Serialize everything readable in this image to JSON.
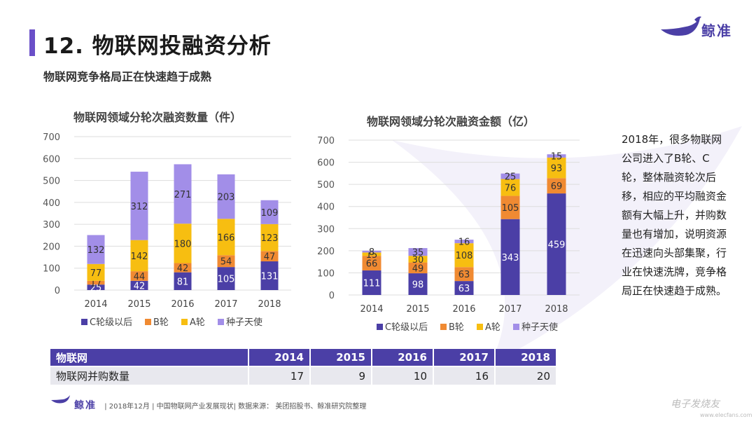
{
  "header": {
    "title": "12. 物联网投融资分析",
    "subtitle": "物联网竞争格局正在快速趋于成熟",
    "logo_text": "鲸准"
  },
  "side_text": "2018年，很多物联网公司进入了B轮、C轮，整体融资轮次后移，相应的平均融资金额有大幅上升，并购数量也有增加，说明资源在迅速向头部集聚，行业在快速洗牌，竞争格局正在快速趋于成熟。",
  "colors": {
    "c_round": "#4b3fa6",
    "b_round": "#f08a32",
    "a_round": "#f7be11",
    "seed": "#a28ee8",
    "accent": "#6a4fc8"
  },
  "chart_data": [
    {
      "type": "bar",
      "stacked": true,
      "title": "物联网领域分轮次融资数量（件）",
      "categories": [
        "2014",
        "2015",
        "2016",
        "2017",
        "2018"
      ],
      "ylim": [
        0,
        700
      ],
      "yticks": [
        "0",
        "100",
        "200",
        "300",
        "400",
        "500",
        "600",
        "700"
      ],
      "series": [
        {
          "name": "C轮级以后",
          "values": [
            25,
            42,
            81,
            105,
            131
          ]
        },
        {
          "name": "B轮",
          "values": [
            17,
            44,
            42,
            54,
            47
          ]
        },
        {
          "name": "A轮",
          "values": [
            77,
            142,
            180,
            166,
            123
          ]
        },
        {
          "name": "种子天使",
          "values": [
            132,
            312,
            271,
            203,
            109
          ]
        }
      ]
    },
    {
      "type": "bar",
      "stacked": true,
      "title": "物联网领域分轮次融资金额（亿）",
      "categories": [
        "2014",
        "2015",
        "2016",
        "2017",
        "2018"
      ],
      "ylim": [
        0,
        700
      ],
      "yticks": [
        "0",
        "100",
        "200",
        "300",
        "400",
        "500",
        "600",
        "700"
      ],
      "series": [
        {
          "name": "C轮级以后",
          "values": [
            111,
            98,
            63,
            343,
            459
          ]
        },
        {
          "name": "B轮",
          "values": [
            66,
            49,
            63,
            105,
            69
          ]
        },
        {
          "name": "A轮",
          "values": [
            15,
            30,
            108,
            76,
            93
          ]
        },
        {
          "name": "种子天使",
          "values": [
            8,
            35,
            16,
            25,
            15
          ]
        }
      ]
    }
  ],
  "table": {
    "header_label": "物联网",
    "years": [
      "2014",
      "2015",
      "2016",
      "2017",
      "2018"
    ],
    "row_label": "物联网并购数量",
    "values": [
      "17",
      "9",
      "10",
      "16",
      "20"
    ]
  },
  "footer": {
    "logo_text": "鲸准",
    "text": "| 2018年12月 | 中国物联网产业发展现状| 数据来源： 美团招股书、鲸准研究院整理"
  },
  "watermark": {
    "text": "电子发烧友",
    "url": "www.elecfans.com"
  }
}
